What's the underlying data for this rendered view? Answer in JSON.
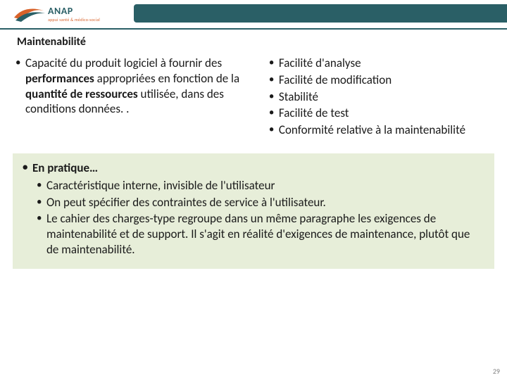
{
  "colors": {
    "teal": "#2a5f66",
    "orange": "#d8622a",
    "rule": "#2a5f66",
    "logo_gray": "#6b6b6b",
    "practice_bg": "#e7eed9",
    "text": "#1a1a1a",
    "pagenum": "#808080"
  },
  "logo": {
    "main": "ANAP",
    "sub": "appui santé & médico-social"
  },
  "title": "Maintenabilité",
  "left_paragraph_parts": [
    {
      "t": "Capacité du produit logiciel à fournir des ",
      "b": false
    },
    {
      "t": "performances",
      "b": true
    },
    {
      "t": " appropriées en fonction de la ",
      "b": false
    },
    {
      "t": "quantité de ressources",
      "b": true
    },
    {
      "t": " utilisée, dans des conditions données. .",
      "b": false
    }
  ],
  "right_bullets": [
    "Facilité d'analyse",
    "Facilité de modification",
    "Stabilité",
    "Facilité de test",
    "Conformité relative à la maintenabilité"
  ],
  "practice": {
    "heading": "En pratique…",
    "items": [
      "Caractéristique interne, invisible  de l'utilisateur",
      "On peut spécifier des contraintes de service à l'utilisateur.",
      "Le cahier des charges-type regroupe dans un même paragraphe les exigences de maintenabilité et de support. Il s'agit en réalité d'exigences de maintenance, plutôt que de maintenabilité."
    ]
  },
  "page_number": "29"
}
